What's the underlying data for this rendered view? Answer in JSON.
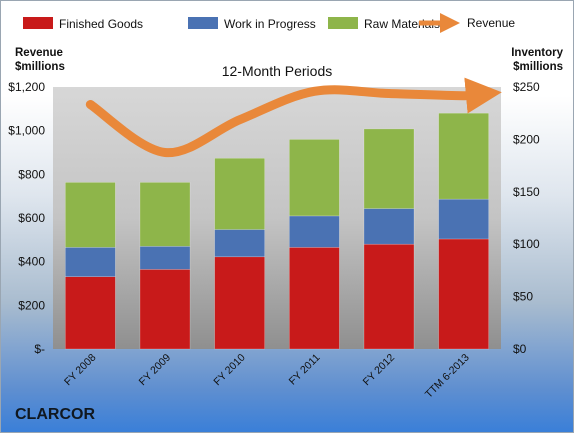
{
  "chart_data": {
    "type": "bar",
    "subtitle": "12-Month Periods",
    "company": "CLARCOR",
    "categories": [
      "FY 2008",
      "FY 2009",
      "FY 2010",
      "FY 2011",
      "FY 2012",
      "TTM 6-2013"
    ],
    "series": [
      {
        "name": "Finished Goods",
        "axis": "right",
        "color": "#c81a1a",
        "values": [
          69,
          76,
          88,
          97,
          100,
          105
        ]
      },
      {
        "name": "Work in Progress",
        "axis": "right",
        "color": "#4a72b3",
        "values": [
          28,
          22,
          26,
          30,
          34,
          38
        ]
      },
      {
        "name": "Raw Materials",
        "axis": "right",
        "color": "#8eb54a",
        "values": [
          62,
          61,
          68,
          73,
          76,
          82
        ]
      },
      {
        "name": "Revenue",
        "axis": "left",
        "type": "line",
        "color": "#e9883a",
        "values": [
          1120,
          900,
          1050,
          1180,
          1170,
          1160
        ]
      }
    ],
    "left_axis": {
      "title_line1": "Revenue",
      "title_line2": "$millions",
      "ylim": [
        0,
        1200
      ],
      "ticks": [
        "$-",
        "$200",
        "$400",
        "$600",
        "$800",
        "$1,000",
        "$1,200"
      ]
    },
    "right_axis": {
      "title_line1": "Inventory",
      "title_line2": "$millions",
      "ylim": [
        0,
        250
      ],
      "ticks": [
        "$0",
        "$50",
        "$100",
        "$150",
        "$200",
        "$250"
      ]
    },
    "stacked": true,
    "legend_position": "top"
  }
}
